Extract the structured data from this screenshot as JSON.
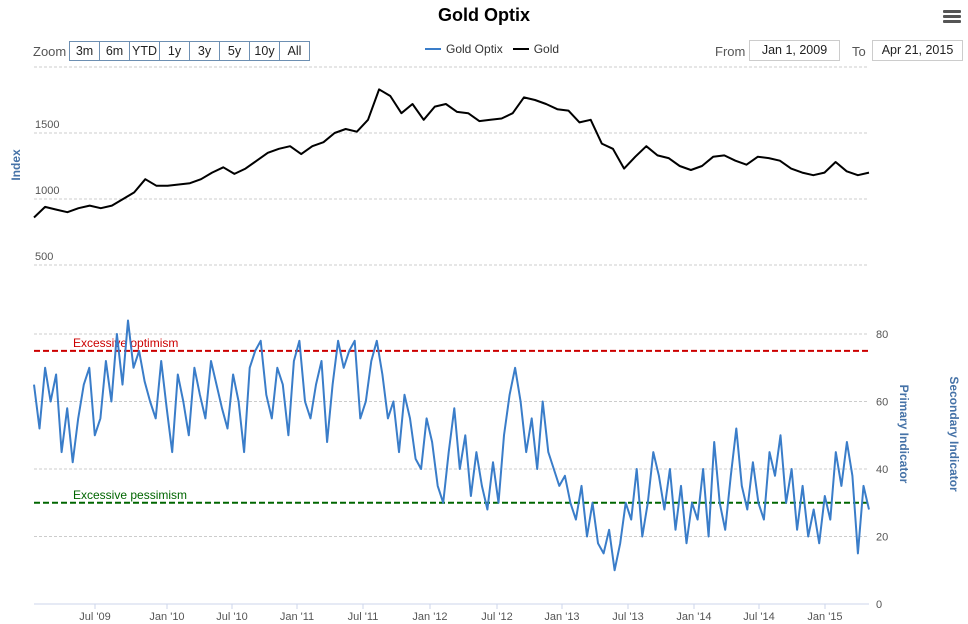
{
  "title": "Gold Optix",
  "zoom": {
    "label": "Zoom",
    "buttons": [
      "3m",
      "6m",
      "YTD",
      "1y",
      "3y",
      "5y",
      "10y",
      "All"
    ]
  },
  "range": {
    "from_label": "From",
    "from": "Jan 1, 2009",
    "to_label": "To",
    "to": "Apr 21, 2015"
  },
  "colors": {
    "optix": "#3a7dc9",
    "gold": "#000000",
    "optimism": "#cc0000",
    "pessimism": "#006600",
    "axis_title": "#4572a7"
  },
  "chart_data": [
    {
      "type": "line",
      "title": "Gold",
      "ylabel": "Index",
      "ylim": [
        500,
        2000
      ],
      "yticks": [
        "500",
        "1000",
        "1500"
      ],
      "series": [
        {
          "name": "Gold",
          "period": "monthly Jan 2009 - Apr 2015",
          "values": [
            860,
            940,
            920,
            900,
            930,
            950,
            930,
            950,
            1000,
            1050,
            1150,
            1100,
            1100,
            1110,
            1120,
            1150,
            1200,
            1240,
            1190,
            1230,
            1290,
            1350,
            1380,
            1400,
            1340,
            1400,
            1430,
            1500,
            1530,
            1510,
            1600,
            1830,
            1780,
            1650,
            1720,
            1600,
            1700,
            1720,
            1660,
            1650,
            1590,
            1600,
            1610,
            1650,
            1770,
            1750,
            1720,
            1680,
            1670,
            1580,
            1600,
            1420,
            1380,
            1230,
            1320,
            1400,
            1330,
            1310,
            1250,
            1220,
            1250,
            1320,
            1330,
            1290,
            1260,
            1320,
            1310,
            1290,
            1230,
            1200,
            1180,
            1200,
            1280,
            1210,
            1180,
            1200
          ]
        }
      ]
    },
    {
      "type": "line",
      "title": "Gold Optix",
      "ylabel": "Primary Indicator",
      "ylabel2": "Secondary Indicator",
      "ylim": [
        0,
        80
      ],
      "yticks": [
        "0",
        "20",
        "40",
        "60",
        "80"
      ],
      "xticks": [
        "Jul '09",
        "Jan '10",
        "Jul '10",
        "Jan '11",
        "Jul '11",
        "Jan '12",
        "Jul '12",
        "Jan '13",
        "Jul '13",
        "Jan '14",
        "Jul '14",
        "Jan '15"
      ],
      "annotations": [
        {
          "text": "Excessive optimism",
          "y": 75
        },
        {
          "text": "Excessive pessimism",
          "y": 30
        }
      ],
      "series": [
        {
          "name": "Gold Optix",
          "period": "semi-monthly Jan 2009 - Apr 2015",
          "values": [
            65,
            52,
            70,
            60,
            68,
            45,
            58,
            42,
            55,
            65,
            70,
            50,
            55,
            72,
            60,
            80,
            65,
            84,
            70,
            75,
            66,
            60,
            55,
            72,
            58,
            45,
            68,
            60,
            50,
            70,
            62,
            55,
            72,
            65,
            58,
            52,
            68,
            60,
            45,
            70,
            75,
            78,
            62,
            55,
            70,
            65,
            50,
            72,
            78,
            60,
            55,
            65,
            72,
            48,
            65,
            78,
            70,
            75,
            78,
            55,
            60,
            72,
            78,
            68,
            55,
            60,
            45,
            62,
            55,
            43,
            40,
            55,
            48,
            35,
            30,
            45,
            58,
            40,
            50,
            32,
            45,
            35,
            28,
            42,
            30,
            50,
            62,
            70,
            60,
            45,
            55,
            40,
            60,
            45,
            40,
            35,
            38,
            30,
            25,
            35,
            20,
            30,
            18,
            15,
            22,
            10,
            18,
            30,
            25,
            40,
            20,
            30,
            45,
            38,
            28,
            40,
            22,
            35,
            18,
            30,
            25,
            40,
            20,
            48,
            30,
            22,
            38,
            52,
            35,
            28,
            42,
            30,
            25,
            45,
            38,
            50,
            30,
            40,
            22,
            35,
            20,
            28,
            18,
            32,
            25,
            45,
            35,
            48,
            38,
            15,
            35,
            28
          ]
        }
      ]
    }
  ]
}
